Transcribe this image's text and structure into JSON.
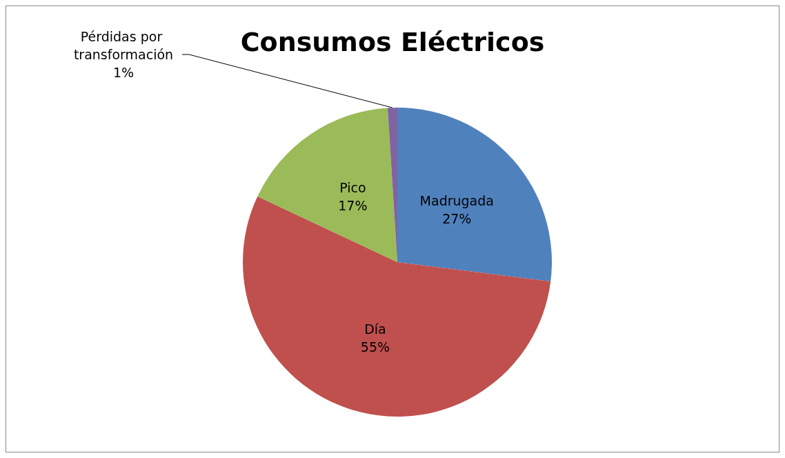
{
  "chart_data": {
    "type": "pie",
    "title": "Consumos Eléctricos",
    "categories": [
      "Madrugada",
      "Día",
      "Pico",
      "Pérdidas por transformación"
    ],
    "values": [
      27,
      55,
      17,
      1
    ],
    "value_labels": [
      "27%",
      "55%",
      "17%",
      "1%"
    ],
    "colors": [
      "#4f81bd",
      "#c0504d",
      "#9bbb59",
      "#8064a2"
    ],
    "legend": false
  }
}
